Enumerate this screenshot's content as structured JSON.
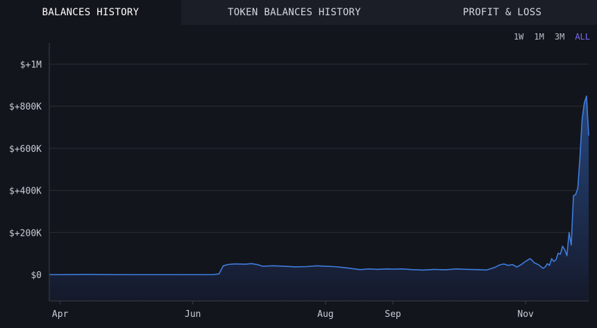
{
  "tabs": [
    {
      "label": "BALANCES HISTORY",
      "active": true
    },
    {
      "label": "TOKEN BALANCES HISTORY",
      "active": false
    },
    {
      "label": "PROFIT & LOSS",
      "active": false
    }
  ],
  "ranges": [
    {
      "label": "1W",
      "active": false
    },
    {
      "label": "1M",
      "active": false
    },
    {
      "label": "3M",
      "active": false
    },
    {
      "label": "ALL",
      "active": true
    }
  ],
  "colors": {
    "line": "#3f7de0",
    "fill_top": "#2a4f8f",
    "fill_bottom": "#151a2c",
    "grid": "#2a2e37",
    "accent": "#7b6cf6"
  },
  "chart_data": {
    "type": "area",
    "title": "",
    "xlabel": "",
    "ylabel": "",
    "ylim": [
      -125000,
      1100000
    ],
    "xlim": [
      "2023-03-27",
      "2023-11-30"
    ],
    "y_ticks": [
      0,
      200000,
      400000,
      600000,
      800000,
      1000000
    ],
    "y_tick_labels": [
      "$0",
      "$+200K",
      "$+400K",
      "$+600K",
      "$+800K",
      "$+1M"
    ],
    "x_ticks": [
      "2023-04-01",
      "2023-06-01",
      "2023-08-01",
      "2023-09-01",
      "2023-11-01"
    ],
    "x_tick_labels": [
      "Apr",
      "Jun",
      "Aug",
      "Sep",
      "Nov"
    ],
    "grid": true,
    "series": [
      {
        "points": [
          [
            "2023-03-27",
            0
          ],
          [
            "2023-04-15",
            1000
          ],
          [
            "2023-05-01",
            0
          ],
          [
            "2023-05-20",
            0
          ],
          [
            "2023-06-01",
            0
          ],
          [
            "2023-06-10",
            0
          ],
          [
            "2023-06-13",
            3000
          ],
          [
            "2023-06-15",
            42000
          ],
          [
            "2023-06-17",
            48000
          ],
          [
            "2023-06-20",
            51000
          ],
          [
            "2023-06-25",
            50000
          ],
          [
            "2023-06-28",
            52000
          ],
          [
            "2023-07-01",
            47000
          ],
          [
            "2023-07-03",
            40000
          ],
          [
            "2023-07-08",
            42000
          ],
          [
            "2023-07-13",
            40000
          ],
          [
            "2023-07-18",
            37000
          ],
          [
            "2023-07-23",
            38000
          ],
          [
            "2023-07-28",
            42000
          ],
          [
            "2023-08-01",
            40000
          ],
          [
            "2023-08-05",
            38000
          ],
          [
            "2023-08-09",
            34000
          ],
          [
            "2023-08-13",
            29000
          ],
          [
            "2023-08-17",
            24000
          ],
          [
            "2023-08-21",
            27000
          ],
          [
            "2023-08-25",
            25000
          ],
          [
            "2023-08-29",
            27000
          ],
          [
            "2023-09-01",
            26000
          ],
          [
            "2023-09-05",
            27000
          ],
          [
            "2023-09-10",
            24000
          ],
          [
            "2023-09-15",
            22000
          ],
          [
            "2023-09-20",
            25000
          ],
          [
            "2023-09-25",
            23000
          ],
          [
            "2023-09-30",
            27000
          ],
          [
            "2023-10-05",
            25000
          ],
          [
            "2023-10-10",
            24000
          ],
          [
            "2023-10-14",
            22000
          ],
          [
            "2023-10-16",
            28000
          ],
          [
            "2023-10-18",
            35000
          ],
          [
            "2023-10-20",
            46000
          ],
          [
            "2023-10-22",
            51000
          ],
          [
            "2023-10-24",
            44000
          ],
          [
            "2023-10-26",
            48000
          ],
          [
            "2023-10-28",
            36000
          ],
          [
            "2023-10-30",
            48000
          ],
          [
            "2023-11-01",
            63000
          ],
          [
            "2023-11-03",
            76000
          ],
          [
            "2023-11-04",
            68000
          ],
          [
            "2023-11-05",
            56000
          ],
          [
            "2023-11-07",
            47000
          ],
          [
            "2023-11-08",
            38000
          ],
          [
            "2023-11-09",
            30000
          ],
          [
            "2023-11-10",
            36000
          ],
          [
            "2023-11-11",
            52000
          ],
          [
            "2023-11-12",
            44000
          ],
          [
            "2023-11-13",
            76000
          ],
          [
            "2023-11-14",
            62000
          ],
          [
            "2023-11-15",
            72000
          ],
          [
            "2023-11-16",
            102000
          ],
          [
            "2023-11-17",
            97000
          ],
          [
            "2023-11-18",
            135000
          ],
          [
            "2023-11-19",
            118000
          ],
          [
            "2023-11-20",
            90000
          ],
          [
            "2023-11-21",
            200000
          ],
          [
            "2023-11-22",
            140000
          ],
          [
            "2023-11-23",
            375000
          ],
          [
            "2023-11-24",
            380000
          ],
          [
            "2023-11-25",
            410000
          ],
          [
            "2023-11-26",
            560000
          ],
          [
            "2023-11-27",
            740000
          ],
          [
            "2023-11-28",
            815000
          ],
          [
            "2023-11-29",
            848000
          ],
          [
            "2023-11-30",
            660000
          ]
        ]
      }
    ]
  }
}
